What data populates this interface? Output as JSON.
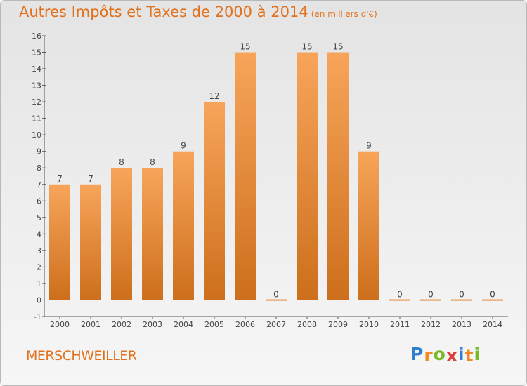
{
  "header": {
    "title": "Autres Impôts et Taxes de 2000 à 2014",
    "unit": "(en milliers d'€)"
  },
  "city": "MERSCHWEILLER",
  "logo": {
    "letters": [
      "P",
      "r",
      "o",
      "x",
      "i",
      "t",
      "i"
    ],
    "colors": [
      "#2f7fd1",
      "#f08a1e",
      "#79b829",
      "#e03b3b",
      "#2f7fd1",
      "#f08a1e",
      "#79b829"
    ]
  },
  "colors": {
    "accent": "#e2711d",
    "bar_top": "#f7a55a",
    "bar_bottom": "#cd6f1c",
    "axis": "#555555"
  },
  "chart_data": {
    "type": "bar",
    "title": "Autres Impôts et Taxes de 2000 à 2014",
    "subtitle": "(en milliers d'€)",
    "categories": [
      "2000",
      "2001",
      "2002",
      "2003",
      "2004",
      "2005",
      "2006",
      "2007",
      "2008",
      "2009",
      "2010",
      "2011",
      "2012",
      "2013",
      "2014"
    ],
    "values": [
      7,
      7,
      8,
      8,
      9,
      12,
      15,
      0,
      15,
      15,
      9,
      0,
      0,
      0,
      0
    ],
    "data_labels": [
      "7",
      "7",
      "8",
      "8",
      "9",
      "12",
      "15",
      "0",
      "15",
      "15",
      "9",
      "0",
      "0",
      "0",
      "0"
    ],
    "yticks": [
      "-1",
      "0",
      "1",
      "2",
      "3",
      "4",
      "5",
      "6",
      "7",
      "8",
      "9",
      "10",
      "11",
      "12",
      "13",
      "14",
      "15",
      "16"
    ],
    "ylim": [
      -1,
      16
    ],
    "grid": false,
    "legend": "none"
  }
}
